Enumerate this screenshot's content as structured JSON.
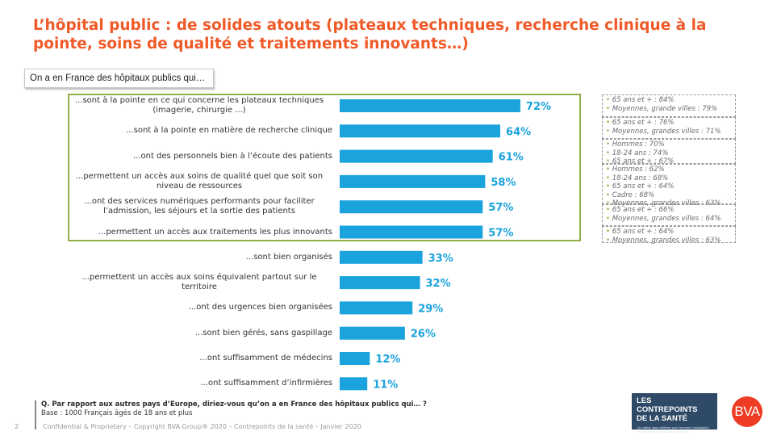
{
  "title": "L’hôpital public : de solides atouts (plateaux techniques, recherche clinique à la pointe, soins de qualité et traitements innovants…)",
  "subtitle": "On a en France des hôpitaux publics qui…",
  "chart_data": {
    "type": "bar",
    "orientation": "horizontal",
    "title": "On a en France des hôpitaux publics qui…",
    "xlabel": "",
    "ylabel": "",
    "xlim": [
      0,
      100
    ],
    "grid": false,
    "bar_color": "#1aa3dc",
    "highlight_color": "#92b04a",
    "highlighted_rows": 6,
    "categories": [
      "...sont à la pointe en ce qui concerne les plateaux techniques (imagerie, chirurgie ...)",
      "...sont à la pointe en matière de recherche clinique",
      "...ont des personnels bien à l’écoute des patients",
      "...permettent un accès aux soins de qualité quel que soit son niveau de ressources",
      "...ont des services numériques performants pour faciliter l’admission, les séjours et la sortie des patients",
      "...permettent un accès aux traitements les plus innovants",
      "...sont bien organisés",
      "...permettent un accès aux soins équivalent partout sur le territoire",
      "...ont des urgences bien organisées",
      "...sont bien gérés, sans gaspillage",
      "...ont suffisamment de médecins",
      "...ont suffisamment d’infirmières"
    ],
    "values": [
      72,
      64,
      61,
      58,
      57,
      57,
      33,
      32,
      29,
      26,
      12,
      11
    ],
    "value_labels": [
      "72%",
      "64%",
      "61%",
      "58%",
      "57%",
      "57%",
      "33%",
      "32%",
      "29%",
      "26%",
      "12%",
      "11%"
    ]
  },
  "notes": [
    [
      "65 ans et + : 84%",
      "Moyennes, grande villes : 79%"
    ],
    [
      "65 ans et + : 76%",
      "Moyennes, grandes villes : 71%"
    ],
    [
      "Hommes : 70%",
      "18-24 ans : 74%",
      "65 ans et + : 67%"
    ],
    [
      "Hommes : 62%",
      "18-24 ans : 68%",
      "65 ans et + : 64%",
      "Cadre : 68%",
      "Moyennes, grandes villes : 63%"
    ],
    [
      "65 ans et + : 66%",
      "Moyennes, grandes villes : 64%"
    ],
    [
      "65 ans et + : 64%",
      "Moyennes, grandes villes : 63%"
    ]
  ],
  "question": "Q. Par rapport aux autres pays d’Europe, diriez-vous qu’on a en France des hôpitaux publics qui… ?",
  "base": "Base : 1000 Français âgés de 18 ans et plus",
  "page_number": "2",
  "footer": "Confidential & Proprietary – Copyright BVA Group® 2020 – Contrepoints de la santé – Janvier 2020",
  "logos": {
    "contrepoints_line1": "LES CONTREPOINTS",
    "contrepoints_line2": "DE LA SANTÉ",
    "contrepoints_tagline": "\"Un débat sans œillères pour favoriser l'adaptation de chacun aux mutations annoncées\"",
    "bva": "BVA"
  }
}
